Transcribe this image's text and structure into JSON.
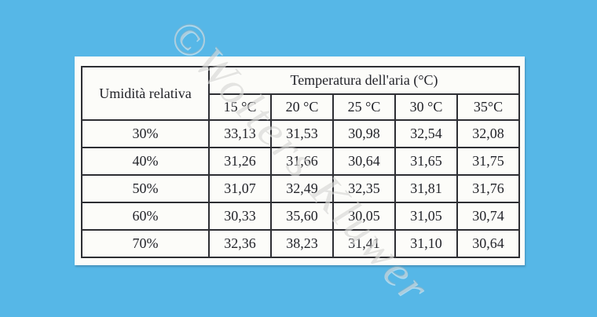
{
  "page": {
    "background_color": "#56b7e7",
    "panel_color": "#fcfcf9"
  },
  "watermark": {
    "text": "©Wolters Kluwer"
  },
  "table": {
    "corner_header": "Umidità relativa",
    "group_header": "Temperatura dell'aria (°C)",
    "col_headers": [
      "15 °C",
      "20 °C",
      "25 °C",
      "30 °C",
      "35°C"
    ],
    "rows": [
      {
        "label": "30%",
        "values": [
          "33,13",
          "31,53",
          "30,98",
          "32,54",
          "32,08"
        ]
      },
      {
        "label": "40%",
        "values": [
          "31,26",
          "31,66",
          "30,64",
          "31,65",
          "31,75"
        ]
      },
      {
        "label": "50%",
        "values": [
          "31,07",
          "32,49",
          "32,35",
          "31,81",
          "31,76"
        ]
      },
      {
        "label": "60%",
        "values": [
          "30,33",
          "35,60",
          "30,05",
          "31,05",
          "30,74"
        ]
      },
      {
        "label": "70%",
        "values": [
          "32,36",
          "38,23",
          "31,41",
          "31,10",
          "30,64"
        ]
      }
    ]
  },
  "chart_data": {
    "type": "table",
    "title": "Temperatura dell'aria (°C)",
    "row_dimension": "Umidità relativa",
    "columns_celsius": [
      15,
      20,
      25,
      30,
      35
    ],
    "rows": [
      {
        "humidity_percent": 30,
        "values": [
          33.13,
          31.53,
          30.98,
          32.54,
          32.08
        ]
      },
      {
        "humidity_percent": 40,
        "values": [
          31.26,
          31.66,
          30.64,
          31.65,
          31.75
        ]
      },
      {
        "humidity_percent": 50,
        "values": [
          31.07,
          32.49,
          32.35,
          31.81,
          31.76
        ]
      },
      {
        "humidity_percent": 60,
        "values": [
          30.33,
          35.6,
          30.05,
          31.05,
          30.74
        ]
      },
      {
        "humidity_percent": 70,
        "values": [
          32.36,
          38.23,
          31.41,
          31.1,
          30.64
        ]
      }
    ]
  }
}
